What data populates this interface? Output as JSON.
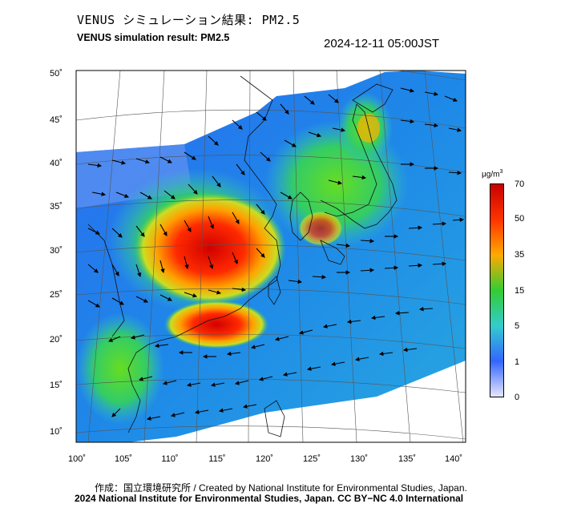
{
  "title_jp": "VENUS シミュレーション結果: PM2.5",
  "title_en": "VENUS simulation result: PM2.5",
  "datetime": "2024-12-11 05:00JST",
  "axes": {
    "y_ticks": [
      "50˚",
      "45˚",
      "40˚",
      "35˚",
      "30˚",
      "25˚",
      "20˚",
      "15˚",
      "10˚"
    ],
    "x_ticks": [
      "100˚",
      "105˚",
      "110˚",
      "115˚",
      "120˚",
      "125˚",
      "130˚",
      "135˚",
      "140˚"
    ]
  },
  "colorbar": {
    "unit": "μg/m",
    "unit_sup": "3",
    "labels": [
      "70",
      "50",
      "35",
      "15",
      "5",
      "1",
      "0"
    ],
    "colors": [
      "#c80000",
      "#ff3300",
      "#ffaa00",
      "#33cc33",
      "#33cccc",
      "#3366ff",
      "#e6e6ff"
    ]
  },
  "credit_line1": "作成：国立環境研究所 / Created by National Institute for Environmental Studies, Japan.",
  "credit_line2": "2024 National Institute for Environmental Studies, Japan. CC BY−NC 4.0 International"
}
